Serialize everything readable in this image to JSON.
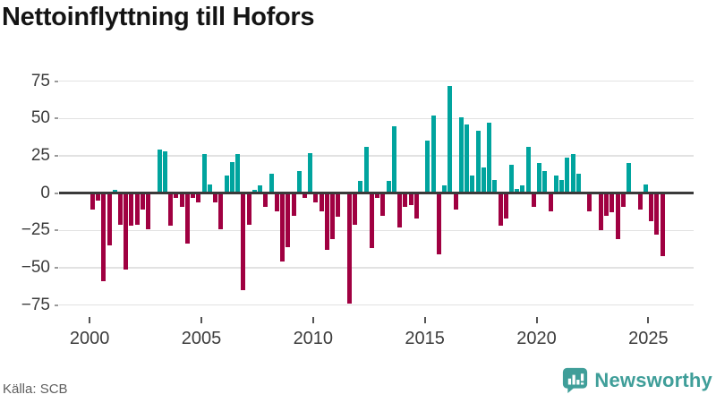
{
  "title": "Nettoinflyttning till Hofors",
  "source": "Källa: SCB",
  "branding": {
    "name": "Newsworthy"
  },
  "colors": {
    "positive": "#00a49e",
    "negative": "#a00041",
    "grid": "#e2e2e2",
    "zero_line": "#3a3a3a",
    "axis_text": "#3c3c3c",
    "title_text": "#141414",
    "source_text": "#5f5f5f",
    "brand": "#3f9e99"
  },
  "chart_data": {
    "type": "bar",
    "title": "Nettoinflyttning till Hofors",
    "frequency": "quarterly",
    "x_start": {
      "year": 2000,
      "quarter": 1
    },
    "x_end": {
      "year": 2025,
      "quarter": 3
    },
    "values": [
      -11,
      -5,
      -59,
      -35,
      2,
      -21,
      -51,
      -22,
      -21,
      -11,
      -24,
      0,
      29,
      28,
      -22,
      -3,
      -9,
      -34,
      -3,
      -6,
      26,
      6,
      -6,
      -24,
      12,
      21,
      26,
      -65,
      -21,
      2,
      5,
      -9,
      13,
      -12,
      -46,
      -36,
      -15,
      15,
      -3,
      27,
      -6,
      -12,
      -38,
      -31,
      -16,
      0,
      -74,
      -21,
      8,
      31,
      -37,
      -3,
      -15,
      8,
      45,
      -23,
      -9,
      -8,
      -17,
      0,
      35,
      52,
      -41,
      5,
      72,
      -11,
      51,
      46,
      12,
      42,
      17,
      47,
      9,
      -22,
      -17,
      19,
      3,
      5,
      31,
      -9,
      20,
      15,
      -12,
      12,
      9,
      24,
      26,
      13,
      0,
      -12,
      0,
      -25,
      -15,
      -13,
      -31,
      -9,
      20,
      0,
      -11,
      6,
      -19,
      -28,
      -42
    ],
    "y_ticks": [
      75,
      50,
      25,
      0,
      -25,
      -50,
      -75
    ],
    "x_tick_years": [
      2000,
      2005,
      2010,
      2015,
      2020,
      2025
    ],
    "ylim": [
      -80,
      80
    ],
    "grid": true,
    "legend": "none"
  }
}
